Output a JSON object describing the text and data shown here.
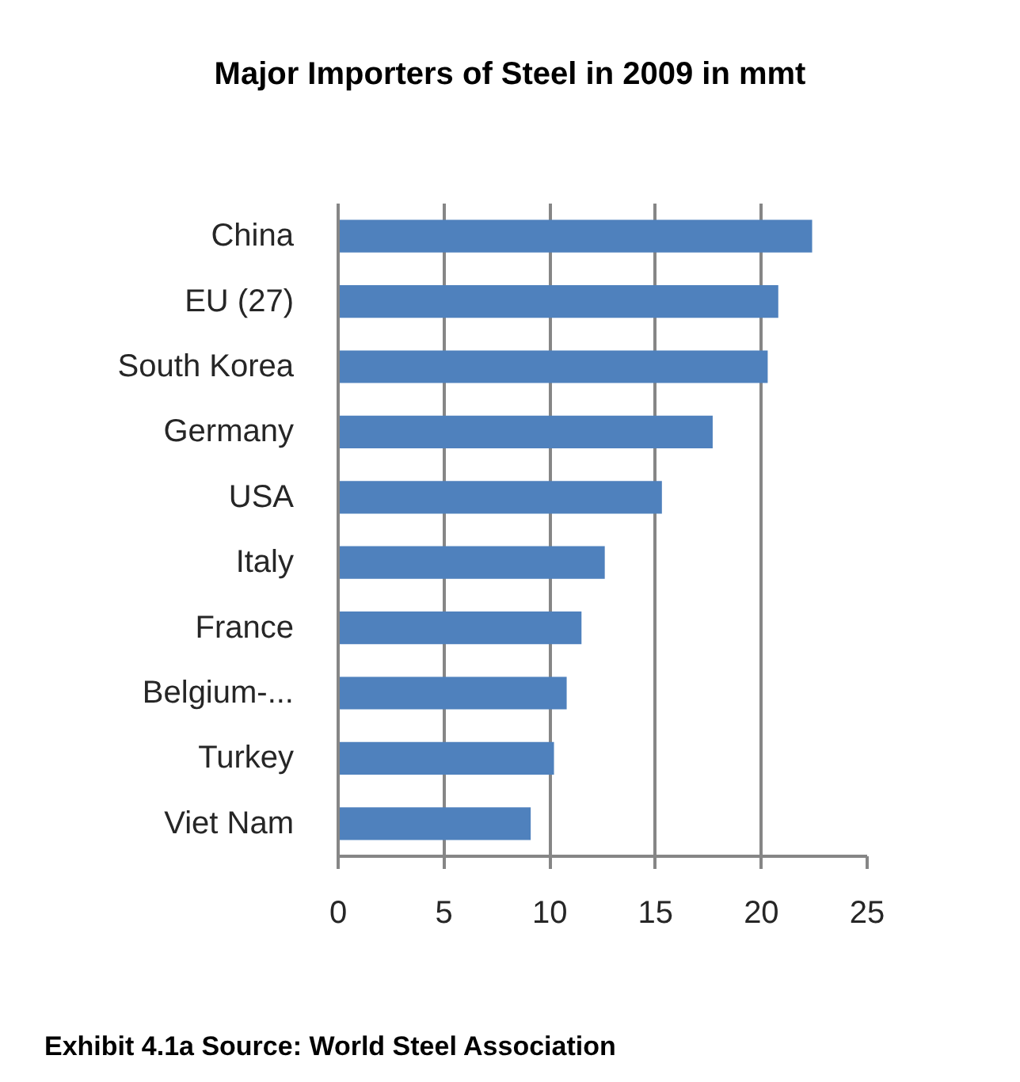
{
  "chart_data": {
    "type": "bar",
    "orientation": "horizontal",
    "title": "Major Importers of Steel in 2009 in mmt",
    "categories": [
      "China",
      "EU (27)",
      "South Korea",
      "Germany",
      "USA",
      "Italy",
      "France",
      "Belgium-...",
      "Turkey",
      "Viet Nam"
    ],
    "values": [
      22.4,
      20.8,
      20.3,
      17.7,
      15.3,
      12.6,
      11.5,
      10.8,
      10.2,
      9.1
    ],
    "color": "#4f81bd",
    "xlim": [
      0,
      25
    ],
    "xticks": [
      0,
      5,
      10,
      15,
      20,
      25
    ],
    "grid": "x",
    "annotations": [
      "Exhibit 4.1a Source: World Steel Association"
    ]
  }
}
